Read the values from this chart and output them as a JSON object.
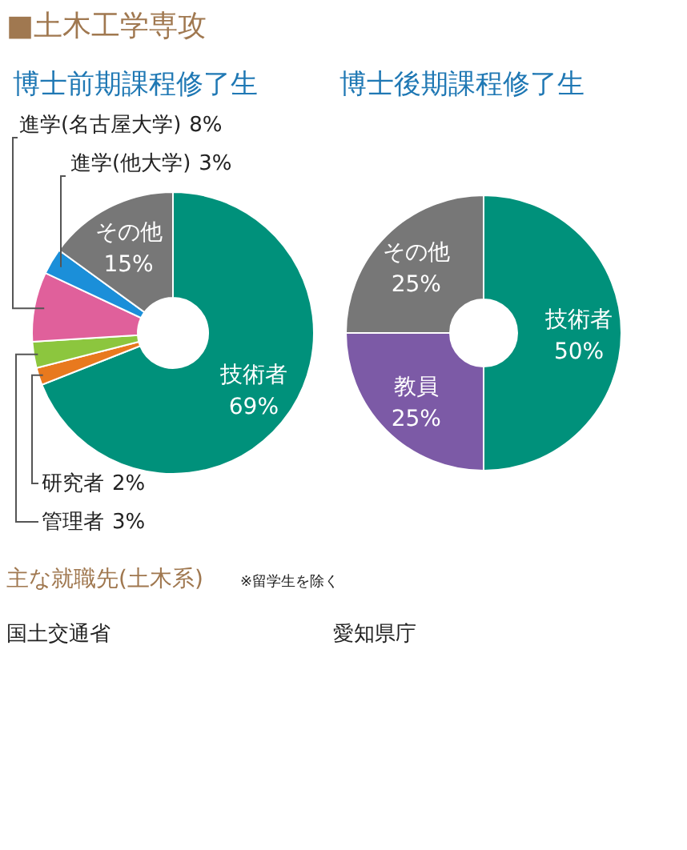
{
  "chart_data": [
    {
      "type": "donut",
      "title": "博士前期課程修了生",
      "categories": [
        "技術者",
        "研究者",
        "管理者",
        "進学(名古屋大学)",
        "進学(他大学)",
        "その他"
      ],
      "values": [
        69,
        2,
        3,
        8,
        3,
        15
      ],
      "value_labels": [
        "69%",
        "2%",
        "3%",
        "8%",
        "3%",
        "15%"
      ],
      "colors": [
        "#00917b",
        "#e8791e",
        "#8cc63e",
        "#e0609b",
        "#1b8fd9",
        "#777777"
      ],
      "annotations": [
        "■土木工学専攻"
      ]
    },
    {
      "type": "donut",
      "title": "博士後期課程修了生",
      "categories": [
        "技術者",
        "教員",
        "その他"
      ],
      "values": [
        50,
        25,
        25
      ],
      "value_labels": [
        "50%",
        "25%",
        "25%"
      ],
      "colors": [
        "#00917b",
        "#7c5aa6",
        "#777777"
      ],
      "annotations": [
        "主な就職先(土木系)",
        "※留学生を除く",
        "国土交通省",
        "愛知県庁"
      ]
    }
  ]
}
